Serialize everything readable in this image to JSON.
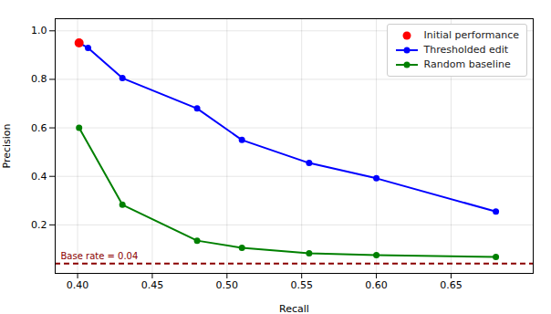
{
  "chart_data": {
    "type": "line",
    "xlabel": "Recall",
    "ylabel": "Precision",
    "series": [
      {
        "name": "Initial performance",
        "type": "scatter",
        "color": "#ff0000",
        "marker": "circle",
        "x": [
          0.401
        ],
        "values": [
          0.95
        ]
      },
      {
        "name": "Thresholded edit",
        "type": "line",
        "color": "#0000ff",
        "marker": "circle",
        "x": [
          0.401,
          0.407,
          0.43,
          0.48,
          0.51,
          0.555,
          0.6,
          0.68
        ],
        "values": [
          0.95,
          0.93,
          0.805,
          0.68,
          0.55,
          0.455,
          0.392,
          0.255
        ]
      },
      {
        "name": "Random baseline",
        "type": "line",
        "color": "#008000",
        "marker": "circle",
        "x": [
          0.401,
          0.43,
          0.48,
          0.51,
          0.555,
          0.6,
          0.68
        ],
        "values": [
          0.6,
          0.283,
          0.135,
          0.105,
          0.083,
          0.075,
          0.068
        ]
      }
    ],
    "base_rate": {
      "value": 0.04,
      "label": "Base rate = 0.04",
      "color": "#8b0000",
      "line_style": "dashed"
    },
    "xlim": [
      0.385,
      0.705
    ],
    "ylim": [
      0.0,
      1.05
    ],
    "xticks": [
      {
        "value": 0.4,
        "label": "0.40"
      },
      0.45,
      {
        "value": 0.5,
        "label": "0.50"
      },
      0.55,
      {
        "value": 0.6,
        "label": "0.60"
      },
      0.65
    ],
    "yticks": [
      0.2,
      0.4,
      0.6,
      0.8,
      {
        "value": 1.0,
        "label": "1.0"
      }
    ],
    "grid": true,
    "legend": "upper right"
  }
}
